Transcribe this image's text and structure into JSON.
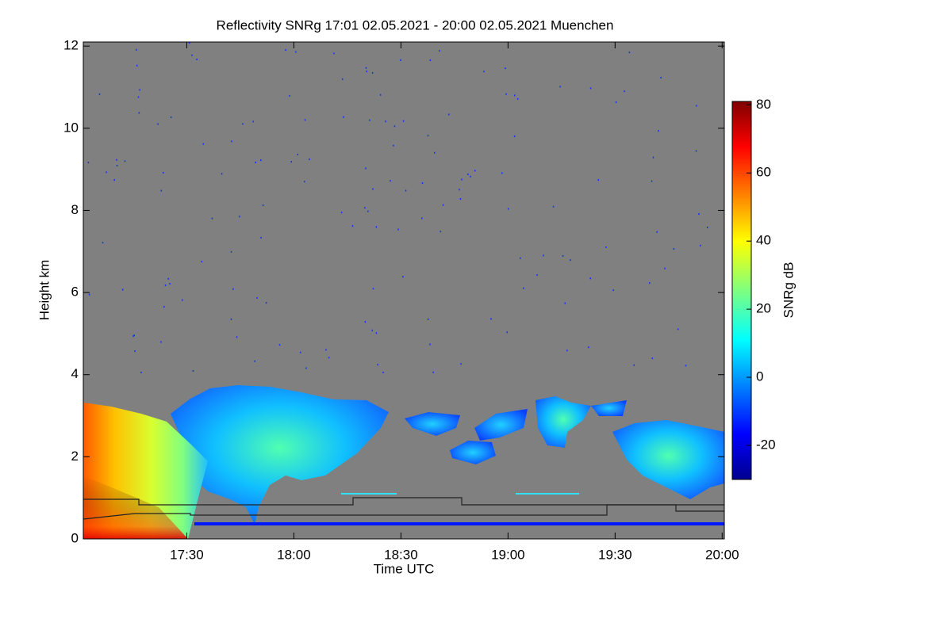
{
  "chart_data": {
    "type": "heatmap",
    "title": "Reflectivity SNRg   17:01 02.05.2021 - 20:00 02.05.2021 Muenchen",
    "x_label": "Time UTC",
    "y_label": "Height km",
    "xlim": [
      17.0167,
      20.01
    ],
    "xticks": [
      {
        "value": 17.5,
        "label": "17:30"
      },
      {
        "value": 18.0,
        "label": "18:00"
      },
      {
        "value": 18.5,
        "label": "18:30"
      },
      {
        "value": 19.0,
        "label": "19:00"
      },
      {
        "value": 19.5,
        "label": "19:30"
      },
      {
        "value": 20.0,
        "label": "20:00"
      }
    ],
    "ylim": [
      0,
      12.1
    ],
    "yticks": [
      0,
      2,
      4,
      6,
      8,
      10,
      12
    ],
    "colorbar_label": "SNRg dB",
    "clim": [
      -30,
      81
    ],
    "cticks": [
      -20,
      0,
      20,
      40,
      60,
      80
    ]
  }
}
